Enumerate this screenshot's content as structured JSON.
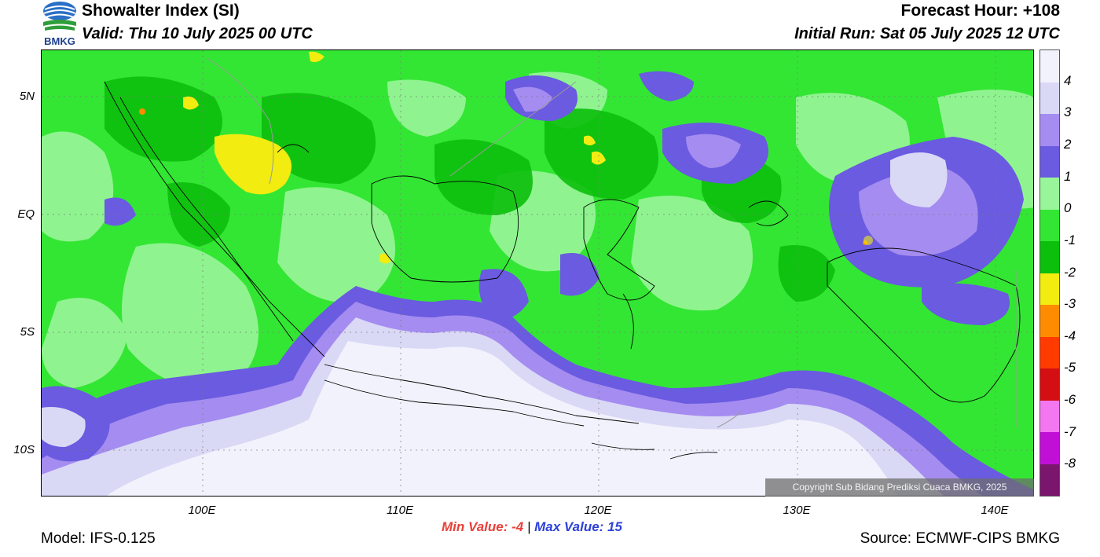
{
  "header": {
    "title": "Showalter Index (SI)",
    "valid": "Valid: Thu 10 July 2025 00 UTC",
    "forecast_hour": "Forecast Hour: +108",
    "initial_run": "Initial Run: Sat 05 July 2025 12 UTC",
    "logo_text": "BMKG"
  },
  "axes": {
    "lat_labels": [
      "5N",
      "EQ",
      "5S",
      "10S"
    ],
    "lon_labels": [
      "100E",
      "110E",
      "120E",
      "130E",
      "140E"
    ]
  },
  "colorbar": {
    "colors": [
      "#f2f2fd",
      "#d9d9f6",
      "#a58cf0",
      "#6a5be0",
      "#99f599",
      "#33e633",
      "#0dbf0d",
      "#f2ec11",
      "#ff8c00",
      "#ff3b00",
      "#d30f14",
      "#f277f0",
      "#c010d6",
      "#7a166e"
    ],
    "labels": [
      "4",
      "3",
      "2",
      "1",
      "0",
      "-1",
      "-2",
      "-3",
      "-4",
      "-5",
      "-6",
      "-7",
      "-8"
    ]
  },
  "map_colors": {
    "base_green": "#33e633",
    "light_green": "#99f599",
    "dark_green": "#0dbf0d",
    "light_purple": "#f2f2fd",
    "lavender": "#d9d9f6",
    "violet": "#a58cf0",
    "blue_violet": "#6a5be0",
    "yellow": "#f2ec11",
    "orange": "#ff8c00",
    "coast": "#000000",
    "border": "#9a9a9a"
  },
  "copyright": "Copyright Sub Bidang Prediksi Cuaca BMKG, 2025",
  "stats": {
    "min_label": "Min Value:",
    "min_value": "-4",
    "separator": "|",
    "max_label": "Max Value:",
    "max_value": "15"
  },
  "footer": {
    "model": "Model: IFS-0.125",
    "source": "Source: ECMWF-CIPS BMKG"
  }
}
